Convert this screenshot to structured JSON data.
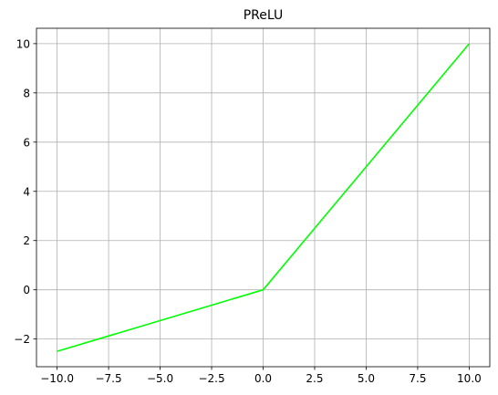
{
  "chart_data": {
    "type": "line",
    "title": "PReLU",
    "xlabel": "",
    "ylabel": "",
    "xlim": [
      -11,
      11
    ],
    "ylim": [
      -3.125,
      10.625
    ],
    "xticks": [
      -10.0,
      -7.5,
      -5.0,
      -2.5,
      0.0,
      2.5,
      5.0,
      7.5,
      10.0
    ],
    "xtick_labels": [
      "−10.0",
      "−7.5",
      "−5.0",
      "−2.5",
      "0.0",
      "2.5",
      "5.0",
      "7.5",
      "10.0"
    ],
    "yticks": [
      -2,
      0,
      2,
      4,
      6,
      8,
      10
    ],
    "ytick_labels": [
      "−2",
      "0",
      "2",
      "4",
      "6",
      "8",
      "10"
    ],
    "grid": true,
    "legend": "none",
    "series": [
      {
        "color": "#00ff00",
        "x": [
          -10,
          0,
          10
        ],
        "y": [
          -2.5,
          0,
          10
        ]
      }
    ]
  },
  "colors": {
    "line": "#00ff00",
    "grid": "#b0b0b0",
    "axes": "#000000",
    "background": "#ffffff"
  }
}
